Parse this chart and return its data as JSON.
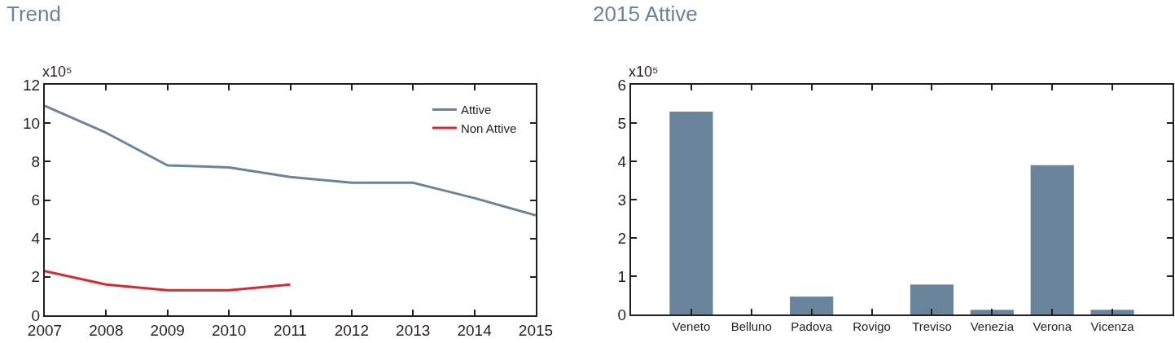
{
  "chart_data": [
    {
      "type": "line",
      "title": "Trend",
      "ylabel": "x10⁵",
      "x": [
        2007,
        2008,
        2009,
        2010,
        2011,
        2012,
        2013,
        2014,
        2015
      ],
      "series": [
        {
          "name": "Attive",
          "color": "#6a849c",
          "values": [
            10.9,
            9.5,
            7.8,
            7.7,
            7.2,
            6.9,
            6.9,
            6.1,
            5.2
          ]
        },
        {
          "name": "Non Attive",
          "color": "#d42a32",
          "values": [
            2.3,
            1.6,
            1.3,
            1.3,
            1.6,
            null,
            null,
            null,
            null
          ]
        }
      ],
      "xlim": [
        2007,
        2015
      ],
      "xticks": [
        2007,
        2008,
        2009,
        2010,
        2011,
        2012,
        2013,
        2014,
        2015
      ],
      "ylim": [
        0,
        12
      ],
      "yticks": [
        0,
        2,
        4,
        6,
        8,
        10,
        12
      ],
      "legend": "top right",
      "line_style": "solid"
    },
    {
      "type": "bar",
      "title": "2015 Attive",
      "ylabel": "x10⁵",
      "categories": [
        "Veneto",
        "Belluno",
        "Padova",
        "Rovigo",
        "Treviso",
        "Venezia",
        "Verona",
        "Vicenza"
      ],
      "values": [
        5.3,
        null,
        0.47,
        null,
        0.78,
        0.12,
        3.9,
        0.12
      ],
      "color": "#6a849c",
      "ylim": [
        0,
        6
      ],
      "yticks": [
        0,
        1,
        2,
        3,
        4,
        5,
        6
      ]
    }
  ]
}
